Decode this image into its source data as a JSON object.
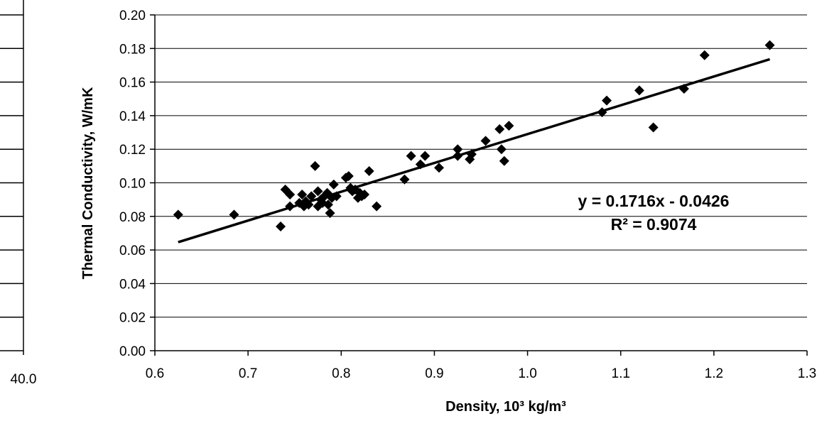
{
  "chart_data": {
    "type": "scatter",
    "title": "",
    "xlabel": "Density, 10³ kg/m³",
    "ylabel": "Thermal Conductivity, W/mK",
    "xlim": [
      0.6,
      1.3
    ],
    "ylim": [
      0.0,
      0.2
    ],
    "x_ticks": [
      "0.6",
      "0.7",
      "0.8",
      "0.9",
      "1.0",
      "1.1",
      "1.2",
      "1.3"
    ],
    "y_ticks": [
      "0.00",
      "0.02",
      "0.04",
      "0.06",
      "0.08",
      "0.10",
      "0.12",
      "0.14",
      "0.16",
      "0.18",
      "0.20"
    ],
    "grid": "horizontal",
    "marker": "diamond",
    "marker_color": "#000000",
    "series": [
      {
        "points": [
          [
            0.625,
            0.081
          ],
          [
            0.685,
            0.081
          ],
          [
            0.735,
            0.074
          ],
          [
            0.74,
            0.096
          ],
          [
            0.745,
            0.093
          ],
          [
            0.745,
            0.086
          ],
          [
            0.755,
            0.088
          ],
          [
            0.758,
            0.093
          ],
          [
            0.76,
            0.086
          ],
          [
            0.762,
            0.089
          ],
          [
            0.765,
            0.087
          ],
          [
            0.768,
            0.092
          ],
          [
            0.772,
            0.11
          ],
          [
            0.775,
            0.095
          ],
          [
            0.775,
            0.086
          ],
          [
            0.778,
            0.09
          ],
          [
            0.78,
            0.088
          ],
          [
            0.782,
            0.092
          ],
          [
            0.785,
            0.094
          ],
          [
            0.786,
            0.087
          ],
          [
            0.788,
            0.082
          ],
          [
            0.79,
            0.091
          ],
          [
            0.792,
            0.099
          ],
          [
            0.795,
            0.092
          ],
          [
            0.805,
            0.103
          ],
          [
            0.808,
            0.104
          ],
          [
            0.81,
            0.097
          ],
          [
            0.812,
            0.095
          ],
          [
            0.815,
            0.096
          ],
          [
            0.818,
            0.091
          ],
          [
            0.82,
            0.094
          ],
          [
            0.822,
            0.092
          ],
          [
            0.825,
            0.093
          ],
          [
            0.83,
            0.107
          ],
          [
            0.838,
            0.086
          ],
          [
            0.868,
            0.102
          ],
          [
            0.875,
            0.116
          ],
          [
            0.885,
            0.111
          ],
          [
            0.89,
            0.116
          ],
          [
            0.905,
            0.109
          ],
          [
            0.925,
            0.116
          ],
          [
            0.925,
            0.12
          ],
          [
            0.938,
            0.114
          ],
          [
            0.94,
            0.117
          ],
          [
            0.955,
            0.125
          ],
          [
            0.97,
            0.132
          ],
          [
            0.972,
            0.12
          ],
          [
            0.975,
            0.113
          ],
          [
            0.98,
            0.134
          ],
          [
            1.08,
            0.142
          ],
          [
            1.085,
            0.149
          ],
          [
            1.12,
            0.155
          ],
          [
            1.135,
            0.133
          ],
          [
            1.168,
            0.156
          ],
          [
            1.19,
            0.176
          ],
          [
            1.26,
            0.182
          ]
        ]
      }
    ],
    "trendline": {
      "type": "linear",
      "slope": 0.1716,
      "intercept": -0.0426,
      "x_range": [
        0.625,
        1.26
      ],
      "equation": "y = 0.1716x - 0.0426",
      "r_squared": "R² = 0.9074"
    },
    "partial_left_panel": {
      "x_tick_label": "40.0"
    }
  }
}
